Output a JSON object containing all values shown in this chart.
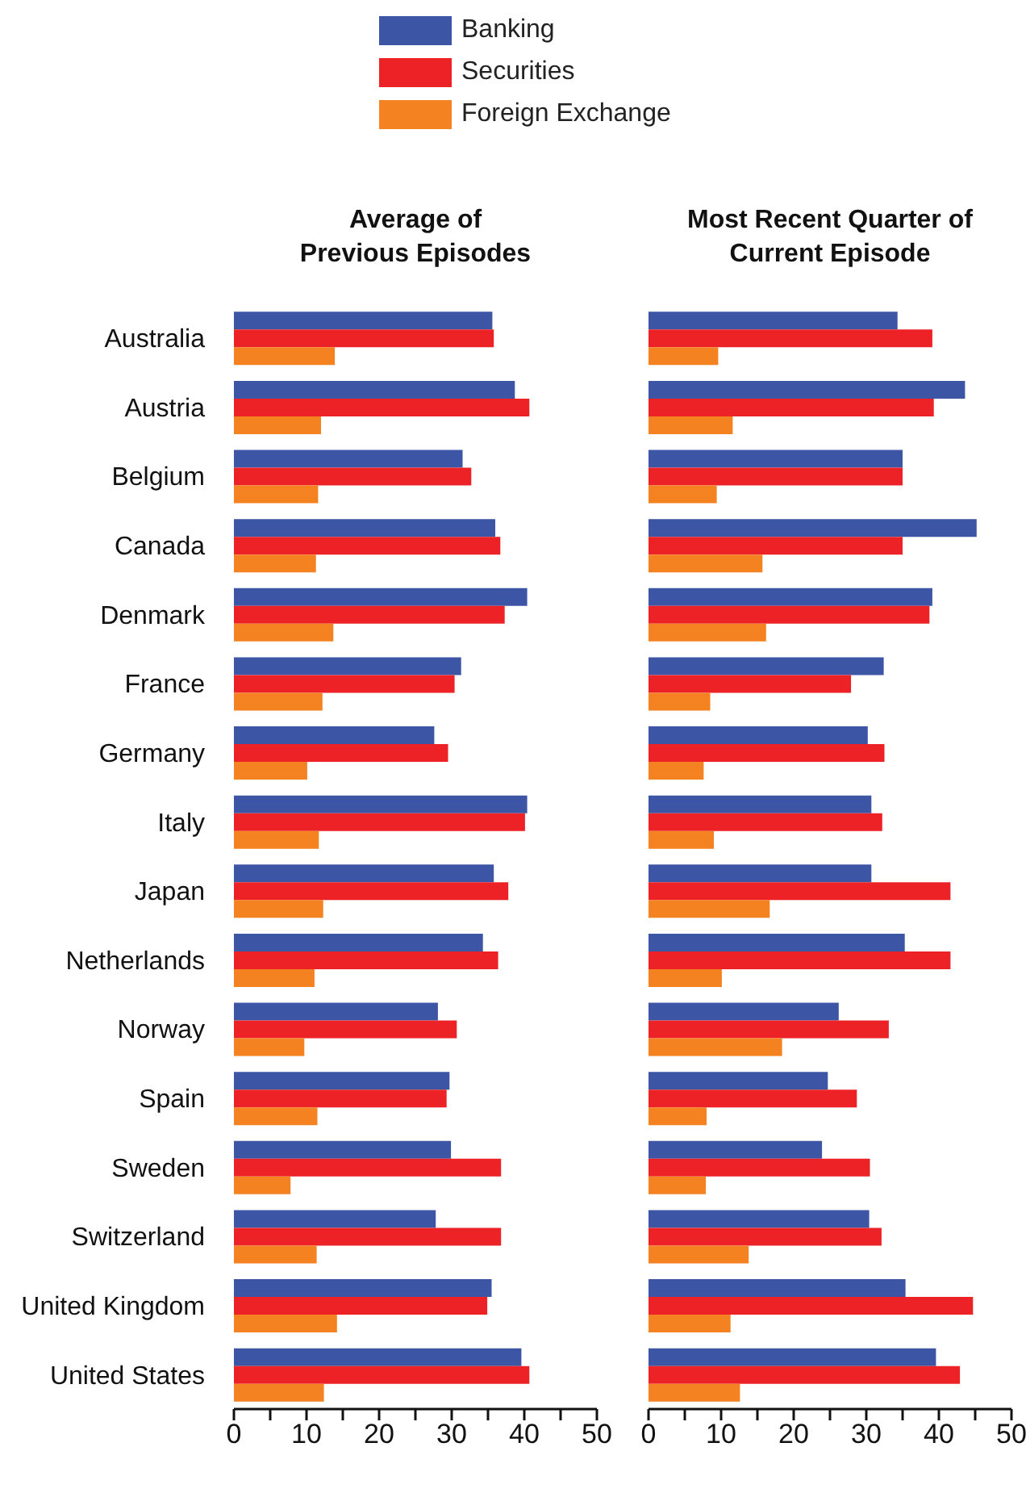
{
  "chart_data": [
    {
      "type": "bar",
      "orientation": "horizontal",
      "title": "Average of Previous Episodes",
      "legend": "top",
      "categories": [
        "Australia",
        "Austria",
        "Belgium",
        "Canada",
        "Denmark",
        "France",
        "Germany",
        "Italy",
        "Japan",
        "Netherlands",
        "Norway",
        "Spain",
        "Sweden",
        "Switzerland",
        "United Kingdom",
        "United States"
      ],
      "series": [
        {
          "name": "Banking",
          "color": "#3c55a5",
          "values": [
            35.6,
            38.7,
            31.5,
            36.0,
            40.4,
            31.3,
            27.6,
            40.4,
            35.8,
            34.3,
            28.1,
            29.7,
            29.9,
            27.8,
            35.5,
            39.6
          ]
        },
        {
          "name": "Securities",
          "color": "#ec2227",
          "values": [
            35.8,
            40.7,
            32.7,
            36.7,
            37.3,
            30.4,
            29.5,
            40.1,
            37.8,
            36.4,
            30.7,
            29.3,
            36.8,
            36.8,
            34.9,
            40.7
          ]
        },
        {
          "name": "Foreign Exchange",
          "color": "#f58220",
          "values": [
            13.9,
            12.0,
            11.6,
            11.3,
            13.7,
            12.2,
            10.1,
            11.7,
            12.3,
            11.1,
            9.7,
            11.5,
            7.8,
            11.4,
            14.2,
            12.4
          ]
        }
      ],
      "xlim": [
        0,
        50
      ],
      "xticks": [
        0,
        {
          "value": 5,
          "label": null
        },
        10,
        {
          "value": 15,
          "label": null
        },
        20,
        {
          "value": 25,
          "label": null
        },
        30,
        {
          "value": 35,
          "label": null
        },
        40,
        {
          "value": 45,
          "label": null
        },
        50
      ],
      "grid": false
    },
    {
      "type": "bar",
      "orientation": "horizontal",
      "title": "Most Recent Quarter of Current Episode",
      "tick_labels": "x",
      "categories": [
        null,
        null,
        null,
        null,
        null,
        null,
        null,
        null,
        null,
        null,
        null,
        null,
        null,
        null,
        null,
        null
      ],
      "series": [
        {
          "color": "#3c55a5",
          "values": [
            34.3,
            43.6,
            35.0,
            45.2,
            39.1,
            32.4,
            30.2,
            30.7,
            30.7,
            35.3,
            26.2,
            24.7,
            23.9,
            30.4,
            35.4,
            39.6
          ]
        },
        {
          "color": "#ec2227",
          "values": [
            39.1,
            39.3,
            35.0,
            35.0,
            38.7,
            27.9,
            32.5,
            32.2,
            41.6,
            41.6,
            33.1,
            28.7,
            30.5,
            32.1,
            44.7,
            42.9
          ]
        },
        {
          "color": "#f58220",
          "values": [
            9.6,
            11.6,
            9.4,
            15.7,
            16.2,
            8.5,
            7.6,
            9.0,
            16.7,
            10.1,
            18.4,
            8.0,
            7.9,
            13.8,
            11.3,
            12.6
          ]
        }
      ],
      "xlim": [
        0,
        50
      ],
      "xticks": [
        0,
        {
          "value": 5,
          "label": null
        },
        10,
        {
          "value": 15,
          "label": null
        },
        20,
        {
          "value": 25,
          "label": null
        },
        30,
        {
          "value": 35,
          "label": null
        },
        40,
        {
          "value": 45,
          "label": null
        },
        50
      ],
      "grid": false
    }
  ]
}
